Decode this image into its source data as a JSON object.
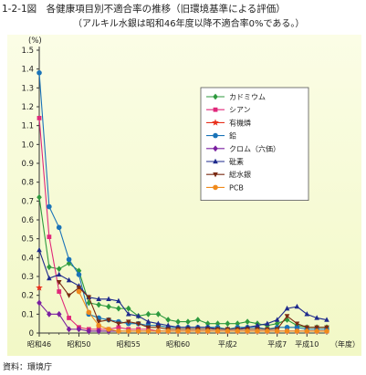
{
  "title": "1-2-1図　各健康項目別不適合率の推移（旧環境基準による評価）",
  "subtitle": "（アルキル水銀は昭和46年度以降不適合率0%である。）",
  "source": "資料：環境庁",
  "chart_data": {
    "type": "line",
    "ylabel": "(%)",
    "xlabel": "（年度）",
    "ylim": [
      0,
      1.5
    ],
    "yticks": [
      "0",
      "0.1",
      "0.2",
      "0.3",
      "0.4",
      "0.5",
      "0.6",
      "0.7",
      "0.8",
      "0.9",
      "1.0",
      "1.1",
      "1.2",
      "1.3",
      "1.4",
      "1.5"
    ],
    "x": [
      46,
      47,
      48,
      49,
      50,
      51,
      52,
      53,
      54,
      55,
      56,
      57,
      58,
      59,
      60,
      61,
      62,
      63,
      64,
      65,
      66,
      67,
      68,
      69,
      70,
      71,
      72,
      73,
      74,
      75
    ],
    "xtick_labels": [
      {
        "x": 46,
        "label": "昭和46"
      },
      {
        "x": 50,
        "label": "昭和50"
      },
      {
        "x": 55,
        "label": "昭和55"
      },
      {
        "x": 60,
        "label": "昭和60"
      },
      {
        "x": 65,
        "label": "平成2"
      },
      {
        "x": 70,
        "label": "平成7"
      },
      {
        "x": 73,
        "label": "平成10"
      }
    ],
    "legend_position": "top-right",
    "grid": false,
    "series": [
      {
        "name": "カドミウム",
        "color": "#2e9a3e",
        "marker": "diamond",
        "values": [
          0.72,
          0.35,
          0.34,
          0.37,
          0.33,
          0.16,
          0.15,
          0.14,
          0.13,
          0.13,
          0.09,
          0.1,
          0.1,
          0.07,
          0.06,
          0.06,
          0.07,
          0.05,
          0.05,
          0.05,
          0.05,
          0.06,
          0.05,
          0.04,
          0.05,
          0.07,
          0.04,
          0.03,
          0.03,
          0.03
        ]
      },
      {
        "name": "シアン",
        "color": "#e0287a",
        "marker": "square",
        "values": [
          1.14,
          0.51,
          0.22,
          0.08,
          0.03,
          0.02,
          0.02,
          0.02,
          0.03,
          0.02,
          0.02,
          0.02,
          0.01,
          0.01,
          0.01,
          0.01,
          0.01,
          0.01,
          0.01,
          0.01,
          0.01,
          0.01,
          0.01,
          0.01,
          0.01,
          0.01,
          0.01,
          0.01,
          0.01,
          0.01
        ]
      },
      {
        "name": "有機燐",
        "color": "#e8301c",
        "marker": "star",
        "values": [
          0.24,
          null,
          null,
          null,
          null,
          null,
          null,
          null,
          null,
          null,
          null,
          null,
          null,
          null,
          null,
          null,
          null,
          null,
          null,
          null,
          null,
          null,
          null,
          null,
          null,
          null,
          null,
          null,
          null,
          null
        ]
      },
      {
        "name": "鉛",
        "color": "#1a73b8",
        "marker": "circle",
        "values": [
          1.38,
          0.67,
          0.56,
          0.39,
          0.31,
          0.1,
          0.08,
          0.07,
          0.06,
          0.05,
          0.05,
          0.04,
          0.04,
          0.03,
          0.03,
          0.03,
          0.03,
          0.03,
          0.03,
          0.02,
          0.03,
          0.03,
          0.03,
          0.02,
          0.03,
          0.03,
          0.03,
          0.02,
          0.02,
          0.02
        ]
      },
      {
        "name": "クロム（六価）",
        "color": "#7a1fa0",
        "marker": "diamond",
        "values": [
          0.16,
          0.1,
          0.1,
          0.02,
          0.02,
          0.01,
          0.01,
          0.01,
          0.01,
          0.01,
          0.01,
          0.01,
          0.01,
          0.01,
          0.01,
          0.01,
          0.01,
          0.01,
          0.01,
          0.01,
          0.01,
          0.01,
          0.01,
          0.01,
          0.01,
          0.01,
          0.01,
          0.01,
          0.01,
          0.01
        ]
      },
      {
        "name": "砒素",
        "color": "#1e2a8c",
        "marker": "triangle",
        "values": [
          0.44,
          0.29,
          0.31,
          0.28,
          0.25,
          0.19,
          0.18,
          0.18,
          0.17,
          0.1,
          0.09,
          0.06,
          0.05,
          0.04,
          0.03,
          0.03,
          0.03,
          0.03,
          0.02,
          0.02,
          0.02,
          0.03,
          0.04,
          0.05,
          0.07,
          0.13,
          0.14,
          0.1,
          0.08,
          0.07
        ]
      },
      {
        "name": "総水銀",
        "color": "#7a2a12",
        "marker": "triangle-down",
        "values": [
          null,
          null,
          0.27,
          0.2,
          0.24,
          0.19,
          0.06,
          0.07,
          0.05,
          0.06,
          0.05,
          0.03,
          0.03,
          0.02,
          0.02,
          0.02,
          0.02,
          0.02,
          0.02,
          0.02,
          0.02,
          0.02,
          0.02,
          0.02,
          0.02,
          0.09,
          0.05,
          0.03,
          0.03,
          0.03
        ]
      },
      {
        "name": "PCB",
        "color": "#f08a1c",
        "marker": "circle",
        "values": [
          null,
          null,
          null,
          null,
          0.22,
          0.11,
          0.04,
          0.02,
          0.01,
          0.01,
          0.01,
          0.01,
          0.01,
          0.01,
          0.01,
          0.01,
          0.01,
          0.01,
          0.01,
          0.01,
          0.01,
          0.01,
          0.01,
          0.01,
          0.01,
          0.01,
          0.01,
          0.01,
          0.01,
          0.01
        ]
      }
    ]
  }
}
